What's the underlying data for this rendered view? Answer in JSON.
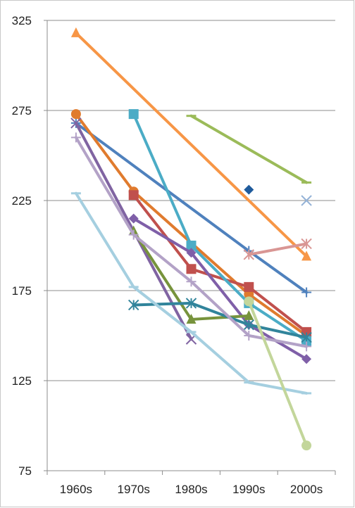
{
  "chart_data": {
    "type": "line",
    "title": "",
    "xlabel": "",
    "ylabel": "",
    "categories": [
      "1960s",
      "1970s",
      "1980s",
      "1990s",
      "2000s"
    ],
    "ylim": [
      75,
      325
    ],
    "yticks": [
      75,
      125,
      175,
      225,
      275,
      325
    ],
    "grid": true,
    "legend": "none",
    "series": [
      {
        "color": "#f79646",
        "marker": "triangle",
        "values": [
          318,
          null,
          null,
          null,
          194
        ]
      },
      {
        "color": "#4f81bd",
        "marker": "plus",
        "values": [
          268,
          null,
          null,
          197,
          174
        ]
      },
      {
        "color": "#e07b2e",
        "marker": "circle",
        "values": [
          273,
          230,
          null,
          173,
          150
        ]
      },
      {
        "color": "#c0504d",
        "marker": "square",
        "values": [
          null,
          228,
          187,
          177,
          152
        ]
      },
      {
        "color": "#4bacc6",
        "marker": "square",
        "values": [
          null,
          273,
          200,
          168,
          147
        ]
      },
      {
        "color": "#8064a2",
        "marker": "x",
        "values": [
          268,
          null,
          148,
          null,
          null
        ]
      },
      {
        "color": "#7f5fa8",
        "marker": "diamond",
        "values": [
          null,
          215,
          196,
          156,
          137
        ]
      },
      {
        "color": "#9bbb59",
        "marker": "dash",
        "values": [
          null,
          null,
          272,
          null,
          235
        ]
      },
      {
        "color": "#77933c",
        "marker": "triangle",
        "values": [
          null,
          208,
          159,
          161,
          null
        ]
      },
      {
        "color": "#31849b",
        "marker": "asterisk",
        "values": [
          null,
          167,
          168,
          156,
          149
        ]
      },
      {
        "color": "#b3a2c7",
        "marker": "plus",
        "values": [
          260,
          206,
          180,
          150,
          144
        ]
      },
      {
        "color": "#a5cfe0",
        "marker": "dash",
        "values": [
          229,
          177,
          152,
          124,
          118
        ]
      },
      {
        "color": "#c3d69b",
        "marker": "circle",
        "values": [
          null,
          null,
          null,
          169,
          89
        ]
      },
      {
        "color": "#d99694",
        "marker": "asterisk",
        "values": [
          null,
          null,
          null,
          195,
          201
        ]
      },
      {
        "color": "#1f5b9c",
        "marker": "diamond",
        "values": [
          null,
          null,
          null,
          231,
          null
        ]
      },
      {
        "color": "#95b3d7",
        "marker": "x",
        "values": [
          null,
          null,
          null,
          null,
          225
        ]
      }
    ]
  }
}
